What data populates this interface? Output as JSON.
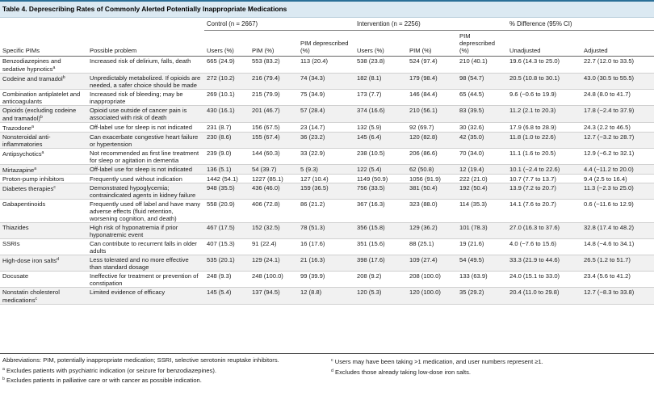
{
  "title": "Table 4. Deprescribing Rates of Commonly Alerted Potentially Inappropriate Medications",
  "groups": {
    "control": "Control (n = 2667)",
    "intervention": "Intervention (n = 2256)",
    "difference": "% Difference (95% CI)"
  },
  "columns": {
    "pim": "Specific PIMs",
    "problem": "Possible problem",
    "users": "Users (%)",
    "pim_pct": "PIM (%)",
    "depresc": "PIM deprescribed (%)",
    "unadjusted": "Unadjusted",
    "adjusted": "Adjusted"
  },
  "rows": [
    {
      "pim": "Benzodiazepines and sedative hypnotics",
      "sup": "a",
      "problem": "Increased risk of delirium, falls, death",
      "c_users": "665 (24.9)",
      "c_pim": "553 (83.2)",
      "c_dep": "113 (20.4)",
      "i_users": "538 (23.8)",
      "i_pim": "524 (97.4)",
      "i_dep": "210 (40.1)",
      "unadj": "19.6 (14.3 to 25.0)",
      "adj": "22.7 (12.0 to 33.5)"
    },
    {
      "pim": "Codeine and tramadol",
      "sup": "b",
      "problem": "Unpredictably metabolized. If opioids are needed, a safer choice should be made",
      "c_users": "272 (10.2)",
      "c_pim": "216 (79.4)",
      "c_dep": "74 (34.3)",
      "i_users": "182 (8.1)",
      "i_pim": "179 (98.4)",
      "i_dep": "98 (54.7)",
      "unadj": "20.5 (10.8 to 30.1)",
      "adj": "43.0 (30.5 to 55.5)"
    },
    {
      "pim": "Combination antiplatelet and anticoagulants",
      "sup": "",
      "problem": "Increased risk of bleeding; may be inappropriate",
      "c_users": "269 (10.1)",
      "c_pim": "215 (79.9)",
      "c_dep": "75 (34.9)",
      "i_users": "173 (7.7)",
      "i_pim": "146 (84.4)",
      "i_dep": "65 (44.5)",
      "unadj": "9.6 (−0.6 to 19.9)",
      "adj": "24.8 (8.0 to 41.7)"
    },
    {
      "pim": "Opioids (excluding codeine and tramadol)",
      "sup": "b",
      "problem": "Opioid use outside of cancer pain is associated with risk of death",
      "c_users": "430 (16.1)",
      "c_pim": "201 (46.7)",
      "c_dep": "57 (28.4)",
      "i_users": "374 (16.6)",
      "i_pim": "210 (56.1)",
      "i_dep": "83 (39.5)",
      "unadj": "11.2 (2.1 to 20.3)",
      "adj": "17.8 (−2.4 to 37.9)"
    },
    {
      "pim": "Trazodone",
      "sup": "a",
      "problem": "Off-label use for sleep is not indicated",
      "c_users": "231 (8.7)",
      "c_pim": "156 (67.5)",
      "c_dep": "23 (14.7)",
      "i_users": "132 (5.9)",
      "i_pim": "92 (69.7)",
      "i_dep": "30 (32.6)",
      "unadj": "17.9 (6.8 to 28.9)",
      "adj": "24.3 (2.2 to 46.5)"
    },
    {
      "pim": "Nonsteroidal anti-inflammatories",
      "sup": "",
      "problem": "Can exacerbate congestive heart failure or hypertension",
      "c_users": "230 (8.6)",
      "c_pim": "155 (67.4)",
      "c_dep": "36 (23.2)",
      "i_users": "145 (6.4)",
      "i_pim": "120 (82.8)",
      "i_dep": "42 (35.0)",
      "unadj": "11.8 (1.0 to 22.6)",
      "adj": "12.7 (−3.2 to 28.7)"
    },
    {
      "pim": "Antipsychotics",
      "sup": "a",
      "problem": "Not recommended as first line treatment for sleep or agitation in dementia",
      "c_users": "239 (9.0)",
      "c_pim": "144 (60.3)",
      "c_dep": "33 (22.9)",
      "i_users": "238 (10.5)",
      "i_pim": "206 (86.6)",
      "i_dep": "70 (34.0)",
      "unadj": "11.1 (1.6 to 20.5)",
      "adj": "12.9 (−6.2 to 32.1)"
    },
    {
      "pim": "Mirtazapine",
      "sup": "a",
      "problem": "Off-label use for sleep is not indicated",
      "c_users": "136 (5.1)",
      "c_pim": "54 (39.7)",
      "c_dep": "5 (9.3)",
      "i_users": "122 (5.4)",
      "i_pim": "62 (50.8)",
      "i_dep": "12 (19.4)",
      "unadj": "10.1 (−2.4 to 22.6)",
      "adj": "4.4 (−11.2 to 20.0)"
    },
    {
      "pim": "Proton-pump inhibitors",
      "sup": "",
      "problem": "Frequently used without indication",
      "c_users": "1442 (54.1)",
      "c_pim": "1227 (85.1)",
      "c_dep": "127 (10.4)",
      "i_users": "1149 (50.9)",
      "i_pim": "1056 (91.9)",
      "i_dep": "222 (21.0)",
      "unadj": "10.7 (7.7 to 13.7)",
      "adj": "9.4 (2.5 to 16.4)"
    },
    {
      "pim": "Diabetes therapies",
      "sup": "c",
      "problem": "Demonstrated hypoglycemia; contraindicated agents in kidney failure",
      "c_users": "948 (35.5)",
      "c_pim": "436 (46.0)",
      "c_dep": "159 (36.5)",
      "i_users": "756 (33.5)",
      "i_pim": "381 (50.4)",
      "i_dep": "192 (50.4)",
      "unadj": "13.9 (7.2 to 20.7)",
      "adj": "11.3 (−2.3 to 25.0)"
    },
    {
      "pim": "Gabapentinoids",
      "sup": "",
      "problem": "Frequently used off label and have many adverse effects (fluid retention, worsening cognition, and death)",
      "c_users": "558 (20.9)",
      "c_pim": "406 (72.8)",
      "c_dep": "86 (21.2)",
      "i_users": "367 (16.3)",
      "i_pim": "323 (88.0)",
      "i_dep": "114 (35.3)",
      "unadj": "14.1 (7.6 to 20.7)",
      "adj": "0.6 (−11.6 to 12.9)"
    },
    {
      "pim": "Thiazides",
      "sup": "",
      "problem": "High risk of hyponatremia if prior hyponatremic event",
      "c_users": "467 (17.5)",
      "c_pim": "152 (32.5)",
      "c_dep": "78 (51.3)",
      "i_users": "356 (15.8)",
      "i_pim": "129 (36.2)",
      "i_dep": "101 (78.3)",
      "unadj": "27.0 (16.3 to 37.6)",
      "adj": "32.8 (17.4 to 48.2)"
    },
    {
      "pim": "SSRIs",
      "sup": "",
      "problem": "Can contribute to recurrent falls in older adults",
      "c_users": "407 (15.3)",
      "c_pim": "91 (22.4)",
      "c_dep": "16 (17.6)",
      "i_users": "351 (15.6)",
      "i_pim": "88 (25.1)",
      "i_dep": "19 (21.6)",
      "unadj": "4.0 (−7.6 to 15.6)",
      "adj": "14.8 (−4.6 to 34.1)"
    },
    {
      "pim": "High-dose iron salts",
      "sup": "d",
      "problem": "Less tolerated and no more effective than standard dosage",
      "c_users": "535 (20.1)",
      "c_pim": "129 (24.1)",
      "c_dep": "21 (16.3)",
      "i_users": "398 (17.6)",
      "i_pim": "109 (27.4)",
      "i_dep": "54 (49.5)",
      "unadj": "33.3 (21.9 to 44.6)",
      "adj": "26.5 (1.2 to 51.7)"
    },
    {
      "pim": "Docusate",
      "sup": "",
      "problem": "Ineffective for treatment or prevention of constipation",
      "c_users": "248 (9.3)",
      "c_pim": "248 (100.0)",
      "c_dep": "99 (39.9)",
      "i_users": "208 (9.2)",
      "i_pim": "208 (100.0)",
      "i_dep": "133 (63.9)",
      "unadj": "24.0 (15.1 to 33.0)",
      "adj": "23.4 (5.6 to 41.2)"
    },
    {
      "pim": "Nonstatin cholesterol medications",
      "sup": "c",
      "problem": "Limited evidence of efficacy",
      "c_users": "145 (5.4)",
      "c_pim": "137 (94.5)",
      "c_dep": "12 (8.8)",
      "i_users": "120 (5.3)",
      "i_pim": "120 (100.0)",
      "i_dep": "35 (29.2)",
      "unadj": "20.4 (11.0 to 29.8)",
      "adj": "12.7 (−8.3 to 33.8)"
    }
  ],
  "footnotes": {
    "abbrev": "Abbreviations: PIM, potentially inappropriate medication; SSRI, selective serotonin reuptake inhibitors.",
    "a_mark": "a",
    "a": "Excludes patients with psychiatric indication (or seizure for benzodiazepines).",
    "b_mark": "b",
    "b": "Excludes patients in palliative care or with cancer as possible indication.",
    "c_mark": "c",
    "c": "Users may have been taking >1 medication, and user numbers represent ≥1.",
    "d_mark": "d",
    "d": "Excludes those already taking low-dose iron salts."
  },
  "colors": {
    "accent": "#2a6f97",
    "title_bg": "#dbe9f2",
    "row_shade": "#f1f1f1"
  }
}
